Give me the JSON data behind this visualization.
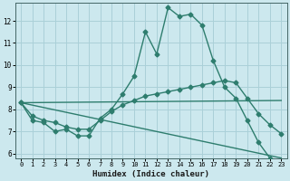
{
  "title": "",
  "xlabel": "Humidex (Indice chaleur)",
  "bg_color": "#cce8ee",
  "grid_color": "#aad0d8",
  "line_color": "#2e7d6e",
  "xlim": [
    -0.5,
    23.5
  ],
  "ylim": [
    5.8,
    12.8
  ],
  "yticks": [
    6,
    7,
    8,
    9,
    10,
    11,
    12
  ],
  "xticks": [
    0,
    1,
    2,
    3,
    4,
    5,
    6,
    7,
    8,
    9,
    10,
    11,
    12,
    13,
    14,
    15,
    16,
    17,
    18,
    19,
    20,
    21,
    22,
    23
  ],
  "series_main": {
    "x": [
      0,
      1,
      2,
      3,
      4,
      5,
      6,
      7,
      8,
      9,
      10,
      11,
      12,
      13,
      14,
      15,
      16,
      17,
      18,
      19,
      20,
      21,
      22
    ],
    "y": [
      8.3,
      7.5,
      7.4,
      7.0,
      7.1,
      6.8,
      6.8,
      7.6,
      8.0,
      8.7,
      9.5,
      11.5,
      10.5,
      12.6,
      12.2,
      12.3,
      11.8,
      10.2,
      9.0,
      8.5,
      7.5,
      6.5,
      5.8
    ]
  },
  "series_mid_upper": {
    "x": [
      0,
      1,
      2,
      3,
      4,
      5,
      6,
      7,
      8,
      9,
      10,
      11,
      12,
      13,
      14,
      15,
      16,
      17,
      18,
      19,
      20,
      21,
      22,
      23
    ],
    "y": [
      8.3,
      7.7,
      7.5,
      7.4,
      7.2,
      7.1,
      7.1,
      7.5,
      7.9,
      8.2,
      8.4,
      8.6,
      8.7,
      8.8,
      8.9,
      9.0,
      9.1,
      9.2,
      9.3,
      9.2,
      8.5,
      7.8,
      7.3,
      6.9
    ]
  },
  "series_upper_flat": {
    "x": [
      0,
      23
    ],
    "y": [
      8.3,
      8.4
    ]
  },
  "series_lower_slope": {
    "x": [
      0,
      23
    ],
    "y": [
      8.3,
      5.8
    ]
  },
  "marker": "D",
  "markersize": 2.5,
  "linewidth": 1.0
}
